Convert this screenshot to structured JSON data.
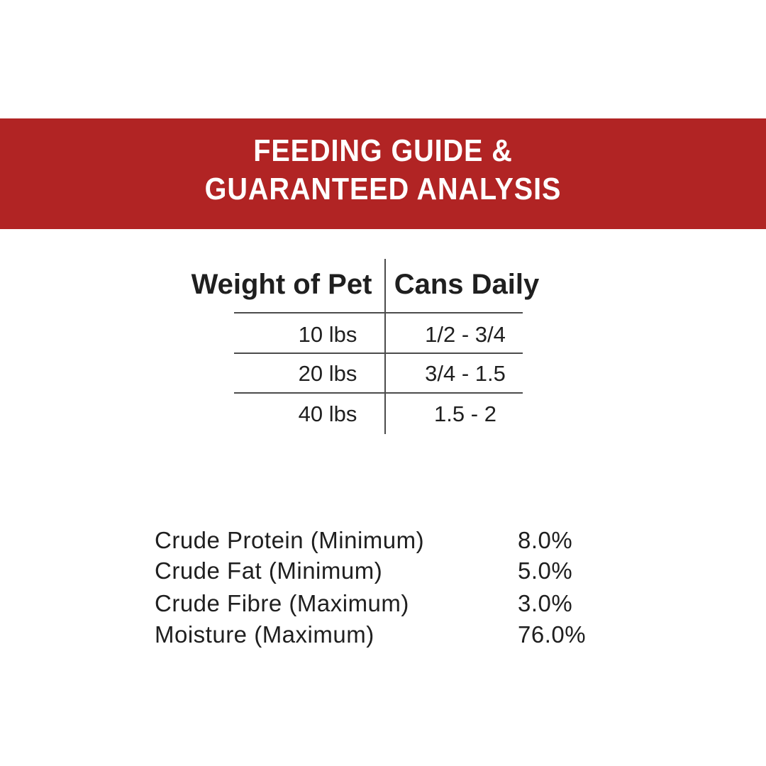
{
  "banner": {
    "title_line1": "FEEDING GUIDE &",
    "title_line2": "GUARANTEED ANALYSIS",
    "background_color": "#B12424",
    "text_color": "#FFFFFF"
  },
  "feeding_table": {
    "columns": [
      "Weight of Pet",
      "Cans Daily"
    ],
    "rows": [
      {
        "weight": "10 lbs",
        "cans": "1/2 - 3/4"
      },
      {
        "weight": "20 lbs",
        "cans": "3/4 - 1.5"
      },
      {
        "weight": "40 lbs",
        "cans": "1.5 - 2"
      }
    ],
    "line_color": "#4C4C4C"
  },
  "guaranteed_analysis": {
    "items": [
      {
        "label": "Crude Protein (Minimum)",
        "value": "8.0%"
      },
      {
        "label": "Crude Fat (Minimum)",
        "value": "5.0%"
      },
      {
        "label": "Crude Fibre (Maximum)",
        "value": "3.0%"
      },
      {
        "label": "Moisture (Maximum)",
        "value": "76.0%"
      }
    ],
    "text_color": "#1F1F1F"
  }
}
